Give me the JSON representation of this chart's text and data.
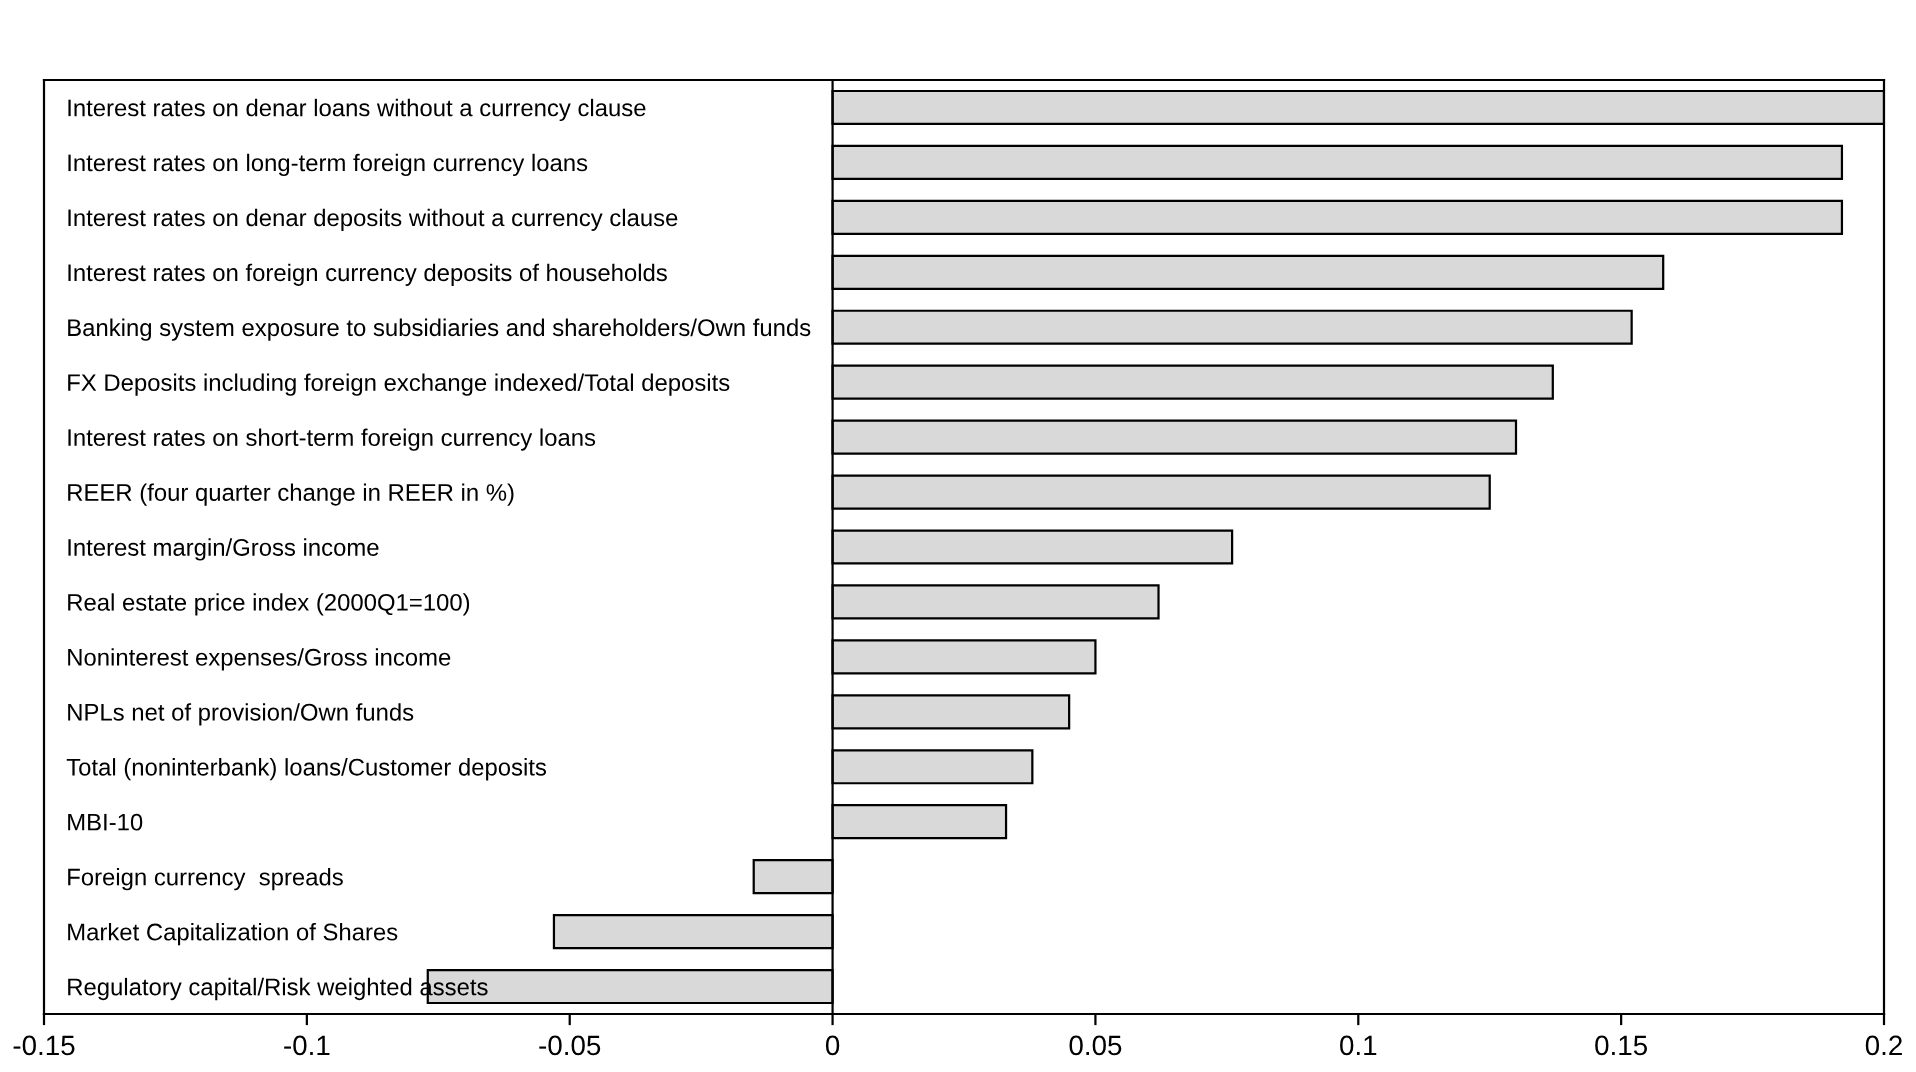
{
  "chart_data": {
    "type": "bar",
    "orientation": "horizontal",
    "categories": [
      "Interest rates on denar loans without a currency clause",
      "Interest rates on long-term foreign currency loans",
      "Interest rates on denar deposits without a currency clause",
      "Interest rates on foreign currency deposits of households",
      "Banking system exposure to subsidiaries and shareholders/Own funds",
      "FX Deposits including foreign exchange indexed/Total deposits",
      "Interest rates on short-term foreign currency loans",
      "REER (four quarter change in REER in %)",
      "Interest margin/Gross income",
      "Real estate price index (2000Q1=100)",
      "Noninterest expenses/Gross income",
      "NPLs net of provision/Own funds",
      "Total (noninterbank) loans/Customer deposits",
      "MBI-10",
      "Foreign currency  spreads",
      "Market Capitalization of Shares",
      "Regulatory capital/Risk weighted assets"
    ],
    "values": [
      0.2,
      0.192,
      0.192,
      0.158,
      0.152,
      0.137,
      0.13,
      0.125,
      0.076,
      0.062,
      0.05,
      0.045,
      0.038,
      0.033,
      -0.015,
      -0.053,
      -0.077
    ],
    "color": "#d9d9d9",
    "xlim": [
      -0.15,
      0.2
    ],
    "xticks": [
      -0.15,
      -0.1,
      -0.05,
      0,
      0.05,
      0.1,
      0.15,
      0.2
    ],
    "ref_lines": [
      {
        "axis": "x",
        "value": 0
      }
    ]
  }
}
